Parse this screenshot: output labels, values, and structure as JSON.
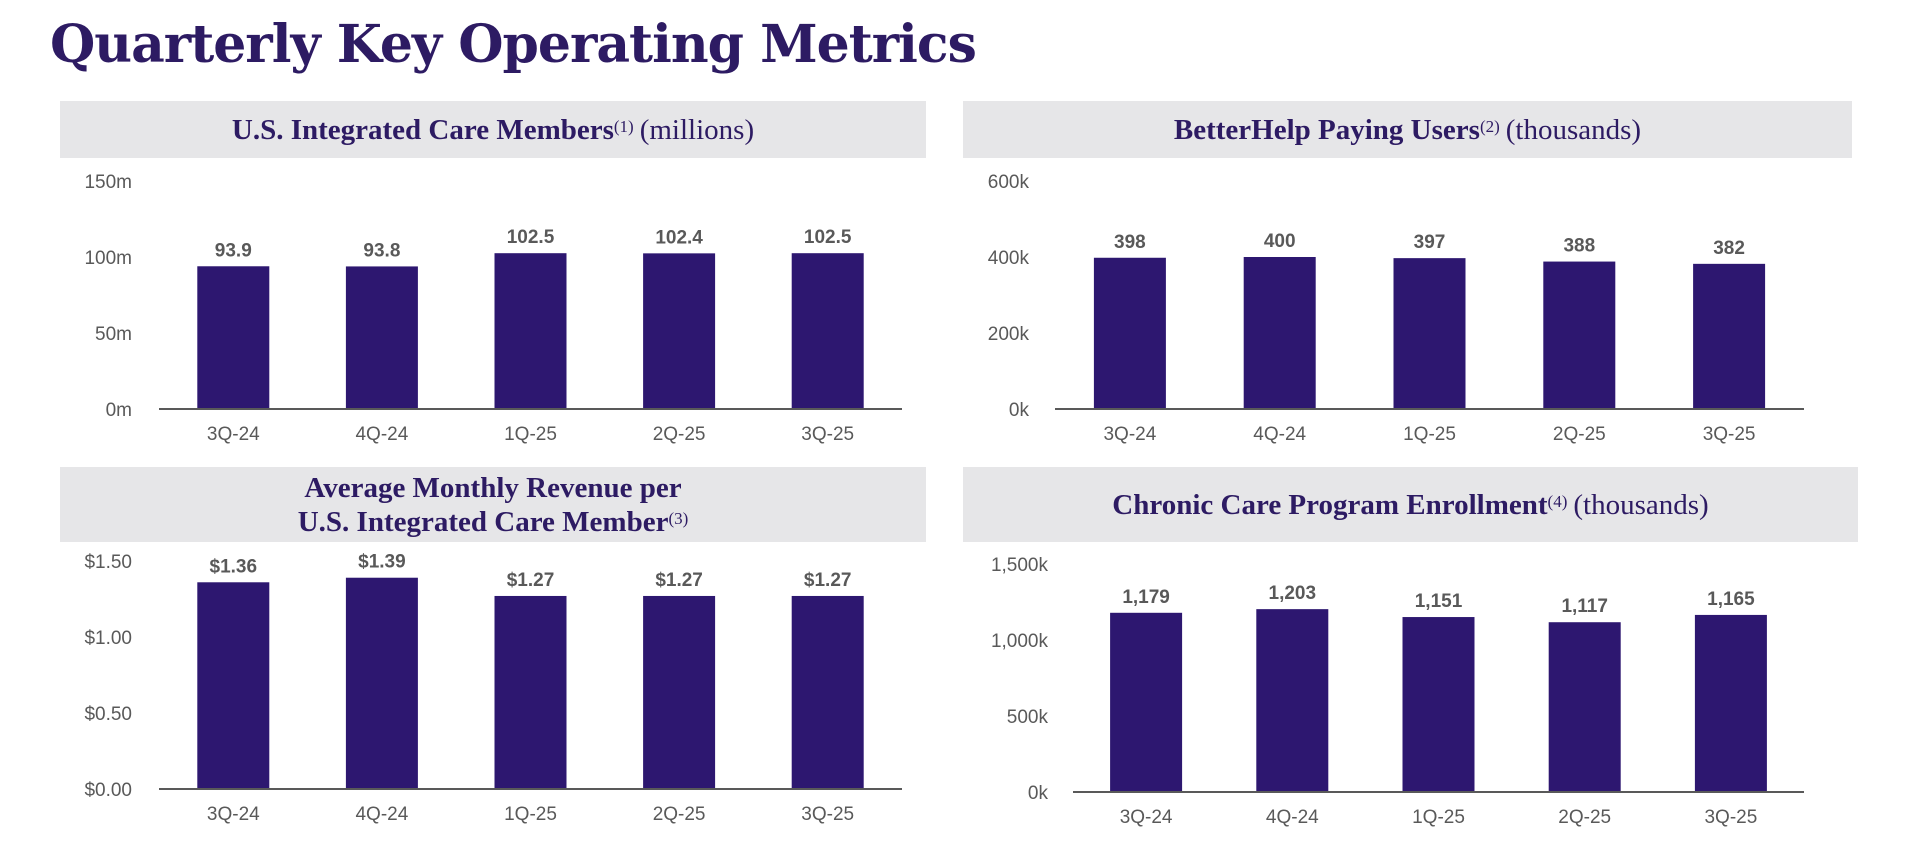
{
  "page_title": "Quarterly Key Operating Metrics",
  "colors": {
    "bar": "#2d1770",
    "title": "#2d1b63",
    "header_bg": "#e6e6e8",
    "axis": "#595959"
  },
  "chart_data": [
    {
      "type": "bar",
      "title": "U.S. Integrated Care Members",
      "title_note": "(1)",
      "unit": "(millions)",
      "categories": [
        "3Q-24",
        "4Q-24",
        "1Q-25",
        "2Q-25",
        "3Q-25"
      ],
      "values": [
        93.9,
        93.8,
        102.5,
        102.4,
        102.5
      ],
      "value_labels": [
        "93.9",
        "93.8",
        "102.5",
        "102.4",
        "102.5"
      ],
      "ylim": [
        0,
        150
      ],
      "y_ticks": [
        0,
        50,
        100,
        150
      ],
      "y_tick_labels": [
        "0m",
        "50m",
        "100m",
        "150m"
      ]
    },
    {
      "type": "bar",
      "title": "BetterHelp Paying Users",
      "title_note": "(2)",
      "unit": "(thousands)",
      "categories": [
        "3Q-24",
        "4Q-24",
        "1Q-25",
        "2Q-25",
        "3Q-25"
      ],
      "values": [
        398,
        400,
        397,
        388,
        382
      ],
      "value_labels": [
        "398",
        "400",
        "397",
        "388",
        "382"
      ],
      "ylim": [
        0,
        600
      ],
      "y_ticks": [
        0,
        200,
        400,
        600
      ],
      "y_tick_labels": [
        "0k",
        "200k",
        "400k",
        "600k"
      ]
    },
    {
      "type": "bar",
      "title_line1": "Average Monthly Revenue per",
      "title": "U.S. Integrated Care Member",
      "title_note": "(3)",
      "unit": "",
      "categories": [
        "3Q-24",
        "4Q-24",
        "1Q-25",
        "2Q-25",
        "3Q-25"
      ],
      "values": [
        1.36,
        1.39,
        1.27,
        1.27,
        1.27
      ],
      "value_labels": [
        "$1.36",
        "$1.39",
        "$1.27",
        "$1.27",
        "$1.27"
      ],
      "ylim": [
        0,
        1.5
      ],
      "y_ticks": [
        0,
        0.5,
        1.0,
        1.5
      ],
      "y_tick_labels": [
        "$0.00",
        "$0.50",
        "$1.00",
        "$1.50"
      ]
    },
    {
      "type": "bar",
      "title": "Chronic Care Program Enrollment",
      "title_note": "(4)",
      "unit": "(thousands)",
      "categories": [
        "3Q-24",
        "4Q-24",
        "1Q-25",
        "2Q-25",
        "3Q-25"
      ],
      "values": [
        1179,
        1203,
        1151,
        1117,
        1165
      ],
      "value_labels": [
        "1,179",
        "1,203",
        "1,151",
        "1,117",
        "1,165"
      ],
      "ylim": [
        0,
        1500
      ],
      "y_ticks": [
        0,
        500,
        1000,
        1500
      ],
      "y_tick_labels": [
        "0k",
        "500k",
        "1,000k",
        "1,500k"
      ]
    }
  ]
}
